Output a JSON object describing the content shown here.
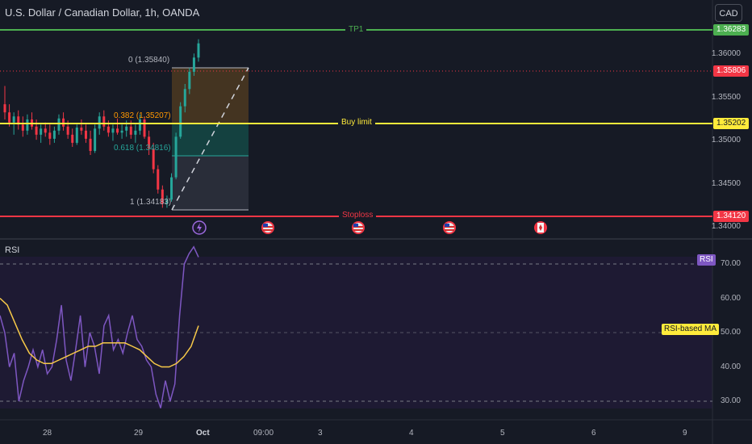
{
  "header": {
    "title": "U.S. Dollar / Canadian Dollar, 1h, OANDA",
    "currency_button": "CAD"
  },
  "price_axis": {
    "ticks": [
      "1.36000",
      "1.35500",
      "1.35000",
      "1.34500",
      "1.34000"
    ],
    "tags": {
      "tp1": {
        "value": "1.36283",
        "color": "#4caf50"
      },
      "current": {
        "value": "1.35806",
        "color": "#f23645"
      },
      "buy_limit": {
        "value": "1.35202",
        "color": "#ffeb3b"
      },
      "stoploss": {
        "value": "1.34120",
        "color": "#f23645"
      }
    }
  },
  "horizontal_lines": {
    "tp1": "TP1",
    "buy_limit": "Buy limit",
    "stoploss": "Stoploss"
  },
  "fibonacci": {
    "level_0": "0 (1.35840)",
    "level_0382": "0.382 (1.35207)",
    "level_0618": "0.618 (1.34816)",
    "level_1": "1 (1.34183)"
  },
  "event_icons": [
    "lightning-icon",
    "us-flag-icon",
    "us-flag-icon",
    "us-flag-icon",
    "canada-flag-icon"
  ],
  "rsi": {
    "label": "RSI",
    "legend_badge": "RSI",
    "ma_badge": "RSI-based MA",
    "ticks": [
      "70.00",
      "60.00",
      "50.00",
      "40.00",
      "30.00"
    ],
    "rsi_color": "#7e57c2",
    "ma_color": "#f7c948",
    "rsi_values": [
      55,
      50,
      40,
      44,
      30,
      36,
      40,
      45,
      40,
      45,
      38,
      40,
      48,
      58,
      42,
      36,
      45,
      55,
      40,
      50,
      46,
      38,
      52,
      55,
      45,
      48,
      44,
      50,
      55,
      48,
      46,
      42,
      40,
      32,
      28,
      36,
      30,
      35,
      55,
      70,
      73,
      75,
      72
    ],
    "ma_values": [
      60,
      58,
      53,
      48,
      44,
      42,
      41,
      41,
      42,
      43,
      44,
      45,
      46,
      46,
      47,
      47,
      47,
      47,
      46,
      45,
      43,
      41,
      40,
      40,
      41,
      43,
      46,
      52
    ]
  },
  "time_axis": [
    "28",
    "29",
    "Oct",
    "09:00",
    "3",
    "4",
    "5",
    "6",
    "9"
  ],
  "chart_data": {
    "type": "candlestick",
    "title": "U.S. Dollar / Canadian Dollar, 1h, OANDA",
    "ohlc": [
      [
        1.352,
        1.3538,
        1.3505,
        1.3512
      ],
      [
        1.3512,
        1.352,
        1.3498,
        1.3502
      ],
      [
        1.3502,
        1.3512,
        1.349,
        1.3508
      ],
      [
        1.3508,
        1.3514,
        1.3495,
        1.35
      ],
      [
        1.35,
        1.3508,
        1.3488,
        1.3494
      ],
      [
        1.3494,
        1.351,
        1.349,
        1.3505
      ],
      [
        1.3505,
        1.3512,
        1.3495,
        1.3498
      ],
      [
        1.3498,
        1.3505,
        1.3485,
        1.349
      ],
      [
        1.349,
        1.35,
        1.3482,
        1.3496
      ],
      [
        1.3496,
        1.3502,
        1.3488,
        1.3492
      ],
      [
        1.3492,
        1.35,
        1.348,
        1.3486
      ],
      [
        1.3486,
        1.3498,
        1.3482,
        1.3494
      ],
      [
        1.3494,
        1.351,
        1.349,
        1.3506
      ],
      [
        1.3506,
        1.3512,
        1.3494,
        1.3498
      ],
      [
        1.3498,
        1.3504,
        1.3486,
        1.349
      ],
      [
        1.349,
        1.3496,
        1.3478,
        1.3482
      ],
      [
        1.3482,
        1.35,
        1.348,
        1.3497
      ],
      [
        1.3497,
        1.3505,
        1.349,
        1.3494
      ],
      [
        1.3494,
        1.35,
        1.3482,
        1.3486
      ],
      [
        1.3486,
        1.3494,
        1.347,
        1.3474
      ],
      [
        1.3474,
        1.35,
        1.3472,
        1.3496
      ],
      [
        1.3496,
        1.3512,
        1.349,
        1.3508
      ],
      [
        1.3508,
        1.3514,
        1.3494,
        1.3498
      ],
      [
        1.3498,
        1.3504,
        1.3488,
        1.3492
      ],
      [
        1.3492,
        1.35,
        1.3484,
        1.3496
      ],
      [
        1.3496,
        1.3506,
        1.349,
        1.3492
      ],
      [
        1.3492,
        1.35,
        1.3486,
        1.3494
      ],
      [
        1.3494,
        1.3504,
        1.3488,
        1.3498
      ],
      [
        1.3498,
        1.3504,
        1.3486,
        1.349
      ],
      [
        1.349,
        1.35,
        1.3482,
        1.3494
      ],
      [
        1.3494,
        1.351,
        1.349,
        1.3505
      ],
      [
        1.3505,
        1.3508,
        1.3486,
        1.3488
      ],
      [
        1.3488,
        1.3494,
        1.347,
        1.3476
      ],
      [
        1.3476,
        1.3482,
        1.3452,
        1.3456
      ],
      [
        1.3456,
        1.346,
        1.3432,
        1.3436
      ],
      [
        1.3436,
        1.344,
        1.3418,
        1.3422
      ],
      [
        1.3422,
        1.343,
        1.3418,
        1.3426
      ],
      [
        1.3426,
        1.3452,
        1.3424,
        1.3448
      ],
      [
        1.3448,
        1.3492,
        1.3446,
        1.3488
      ],
      [
        1.3488,
        1.3522,
        1.3486,
        1.3518
      ],
      [
        1.3518,
        1.354,
        1.3512,
        1.3535
      ],
      [
        1.3535,
        1.3556,
        1.353,
        1.3552
      ],
      [
        1.3552,
        1.357,
        1.3548,
        1.3566
      ],
      [
        1.3566,
        1.3584,
        1.3562,
        1.358
      ]
    ],
    "y_range": [
      1.34,
      1.361
    ],
    "rsi_range": [
      25,
      80
    ]
  }
}
